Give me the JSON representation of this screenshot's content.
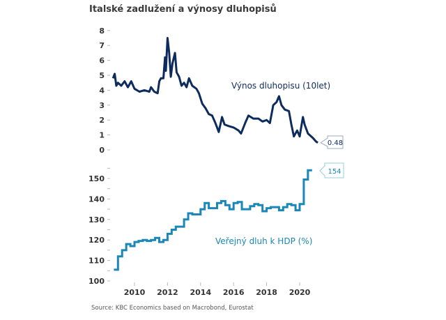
{
  "title": "Italské zadlužení a výnosy dluhopisů",
  "source": "Source: KBC Economics based on Macrobond, Eurostat",
  "chart_data": [
    {
      "type": "line",
      "series_label": "Výnos dluhopisu (10let)",
      "end_label": "0.48",
      "color": "#0d2b5c",
      "ylim": [
        0,
        8
      ],
      "yticks": [
        "0",
        "1",
        "2",
        "3",
        "4",
        "5",
        "6",
        "7",
        "8"
      ],
      "xlim": [
        2008.5,
        2021.5
      ],
      "grid": false,
      "points": [
        [
          2008.7,
          4.8
        ],
        [
          2008.8,
          5.1
        ],
        [
          2008.9,
          4.3
        ],
        [
          2009.0,
          4.5
        ],
        [
          2009.2,
          4.3
        ],
        [
          2009.4,
          4.6
        ],
        [
          2009.6,
          4.2
        ],
        [
          2009.8,
          4.6
        ],
        [
          2010.0,
          4.1
        ],
        [
          2010.3,
          3.9
        ],
        [
          2010.6,
          4.0
        ],
        [
          2010.9,
          3.9
        ],
        [
          2011.0,
          4.2
        ],
        [
          2011.2,
          3.9
        ],
        [
          2011.4,
          3.8
        ],
        [
          2011.5,
          4.6
        ],
        [
          2011.6,
          4.8
        ],
        [
          2011.75,
          4.8
        ],
        [
          2011.85,
          6.2
        ],
        [
          2011.9,
          5.3
        ],
        [
          2012.0,
          7.5
        ],
        [
          2012.1,
          6.5
        ],
        [
          2012.2,
          4.9
        ],
        [
          2012.3,
          5.8
        ],
        [
          2012.45,
          6.5
        ],
        [
          2012.55,
          5.2
        ],
        [
          2012.7,
          4.9
        ],
        [
          2012.85,
          4.3
        ],
        [
          2013.0,
          4.5
        ],
        [
          2013.15,
          4.2
        ],
        [
          2013.3,
          4.8
        ],
        [
          2013.5,
          4.3
        ],
        [
          2013.75,
          4.1
        ],
        [
          2013.9,
          3.8
        ],
        [
          2014.1,
          3.1
        ],
        [
          2014.3,
          2.8
        ],
        [
          2014.5,
          2.4
        ],
        [
          2014.7,
          2.3
        ],
        [
          2014.9,
          1.8
        ],
        [
          2015.1,
          1.2
        ],
        [
          2015.3,
          2.2
        ],
        [
          2015.45,
          1.7
        ],
        [
          2015.7,
          1.6
        ],
        [
          2016.0,
          1.5
        ],
        [
          2016.3,
          1.3
        ],
        [
          2016.45,
          1.1
        ],
        [
          2016.7,
          1.8
        ],
        [
          2016.9,
          2.3
        ],
        [
          2017.2,
          2.1
        ],
        [
          2017.5,
          2.1
        ],
        [
          2017.75,
          1.9
        ],
        [
          2018.0,
          2.0
        ],
        [
          2018.2,
          1.8
        ],
        [
          2018.4,
          3.0
        ],
        [
          2018.6,
          3.2
        ],
        [
          2018.75,
          3.6
        ],
        [
          2018.9,
          3.0
        ],
        [
          2019.1,
          2.7
        ],
        [
          2019.35,
          2.6
        ],
        [
          2019.5,
          1.7
        ],
        [
          2019.65,
          0.9
        ],
        [
          2019.85,
          1.3
        ],
        [
          2020.0,
          0.9
        ],
        [
          2020.2,
          2.2
        ],
        [
          2020.3,
          1.7
        ],
        [
          2020.5,
          1.1
        ],
        [
          2020.8,
          0.8
        ],
        [
          2021.0,
          0.55
        ],
        [
          2021.1,
          0.48
        ]
      ]
    },
    {
      "type": "line",
      "step": true,
      "series_label": "Veřejný dluh k HDP (%)",
      "end_label": "154",
      "color": "#1a87b8",
      "ylim": [
        100,
        155
      ],
      "yticks": [
        "100",
        "110",
        "120",
        "130",
        "140",
        "150"
      ],
      "xlim": [
        2008.5,
        2021.5
      ],
      "xticks": [
        "2010",
        "2012",
        "2014",
        "2016",
        "2018",
        "2020"
      ],
      "grid": false,
      "points": [
        [
          2008.75,
          105.5
        ],
        [
          2009.0,
          112
        ],
        [
          2009.25,
          115
        ],
        [
          2009.5,
          118
        ],
        [
          2009.75,
          117
        ],
        [
          2010.0,
          119
        ],
        [
          2010.25,
          119.5
        ],
        [
          2010.5,
          120
        ],
        [
          2010.75,
          119.5
        ],
        [
          2011.0,
          120
        ],
        [
          2011.25,
          121
        ],
        [
          2011.5,
          119
        ],
        [
          2011.75,
          120
        ],
        [
          2012.0,
          123
        ],
        [
          2012.25,
          125
        ],
        [
          2012.5,
          126.5
        ],
        [
          2012.75,
          126.5
        ],
        [
          2013.0,
          130
        ],
        [
          2013.25,
          133
        ],
        [
          2013.5,
          132.5
        ],
        [
          2013.75,
          132.5
        ],
        [
          2014.0,
          135
        ],
        [
          2014.25,
          138
        ],
        [
          2014.5,
          135.5
        ],
        [
          2014.75,
          135.5
        ],
        [
          2015.0,
          138
        ],
        [
          2015.25,
          139
        ],
        [
          2015.5,
          137
        ],
        [
          2015.75,
          135
        ],
        [
          2016.0,
          138
        ],
        [
          2016.25,
          138.5
        ],
        [
          2016.5,
          135
        ],
        [
          2016.75,
          135
        ],
        [
          2017.0,
          136.5
        ],
        [
          2017.25,
          137.5
        ],
        [
          2017.5,
          137
        ],
        [
          2017.75,
          134
        ],
        [
          2018.0,
          135.5
        ],
        [
          2018.25,
          136
        ],
        [
          2018.5,
          136
        ],
        [
          2018.75,
          134.5
        ],
        [
          2019.0,
          136
        ],
        [
          2019.25,
          137.5
        ],
        [
          2019.5,
          137
        ],
        [
          2019.75,
          134.5
        ],
        [
          2020.0,
          137.5
        ],
        [
          2020.25,
          149.5
        ],
        [
          2020.5,
          154
        ],
        [
          2020.75,
          154
        ]
      ]
    }
  ]
}
